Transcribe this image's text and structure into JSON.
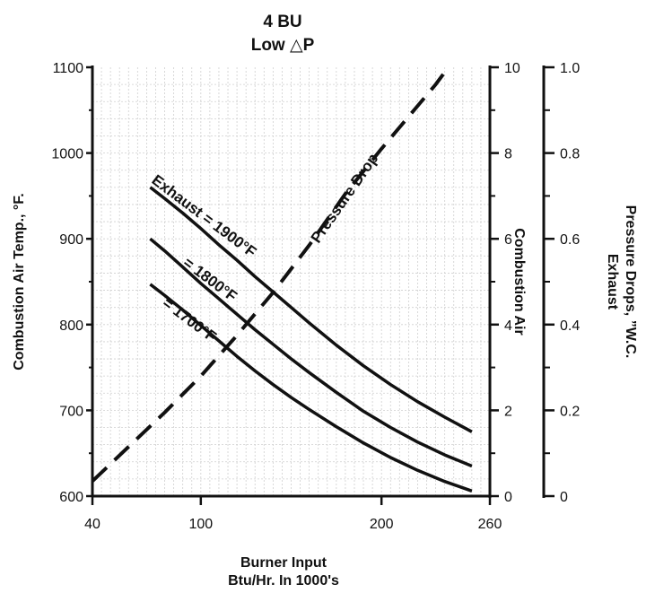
{
  "chart_data": {
    "type": "line",
    "title": "4 BU",
    "subtitle": "Low △P",
    "xlabel_line1": "Burner Input",
    "xlabel_line2": "Btu/Hr. In 1000's",
    "ylabel_left": "Combustion Air Temp., °F.",
    "ylabel_right1": "Combustion Air",
    "ylabel_right2_line1": "Pressure Drops, ”W.C.",
    "ylabel_right2_line2": "Exhaust",
    "x_ticks": [
      "40",
      "100",
      "200",
      "260"
    ],
    "x_tick_values": [
      40,
      100,
      200,
      260
    ],
    "xlim": [
      40,
      260
    ],
    "y_left_ticks": [
      "600",
      "700",
      "800",
      "900",
      "1000",
      "1100"
    ],
    "ylim_left": [
      600,
      1100
    ],
    "y_right1_ticks": [
      "0",
      "2",
      "4",
      "6",
      "8",
      "10"
    ],
    "ylim_right1": [
      0,
      10
    ],
    "y_right2_ticks": [
      "0",
      "0.2",
      "0.4",
      "0.6",
      "0.8",
      "1.0"
    ],
    "ylim_right2": [
      0,
      1.0
    ],
    "grid": true,
    "series": [
      {
        "name": "Exhaust = 1900°F",
        "axis": "left",
        "style": "solid",
        "x": [
          72,
          80,
          90,
          100,
          110,
          120,
          130,
          140,
          150,
          160,
          175,
          190,
          205,
          220,
          235,
          250
        ],
        "y": [
          960,
          947,
          930,
          912,
          893,
          875,
          856,
          838,
          820,
          802,
          776,
          752,
          730,
          710,
          692,
          675
        ]
      },
      {
        "name": "= 1800°F",
        "axis": "left",
        "style": "solid",
        "x": [
          72,
          80,
          90,
          100,
          110,
          120,
          130,
          140,
          150,
          160,
          175,
          190,
          205,
          220,
          235,
          250
        ],
        "y": [
          900,
          886,
          867,
          848,
          830,
          812,
          794,
          777,
          760,
          744,
          721,
          699,
          680,
          663,
          648,
          635
        ]
      },
      {
        "name": "= 1700°F",
        "axis": "left",
        "style": "solid",
        "x": [
          72,
          80,
          90,
          100,
          110,
          120,
          130,
          140,
          150,
          160,
          175,
          190,
          205,
          220,
          235,
          250
        ],
        "y": [
          847,
          834,
          817,
          799,
          781,
          763,
          746,
          730,
          715,
          701,
          681,
          662,
          645,
          630,
          617,
          606
        ]
      },
      {
        "name": "Pressure Drop",
        "axis": "right1",
        "style": "dashed",
        "x": [
          40,
          60,
          80,
          100,
          120,
          140,
          160,
          180,
          200,
          220,
          230,
          237
        ],
        "y": [
          0.35,
          1.15,
          1.95,
          2.8,
          3.75,
          4.75,
          5.85,
          7.05,
          8.1,
          9.1,
          9.6,
          10
        ]
      }
    ]
  }
}
